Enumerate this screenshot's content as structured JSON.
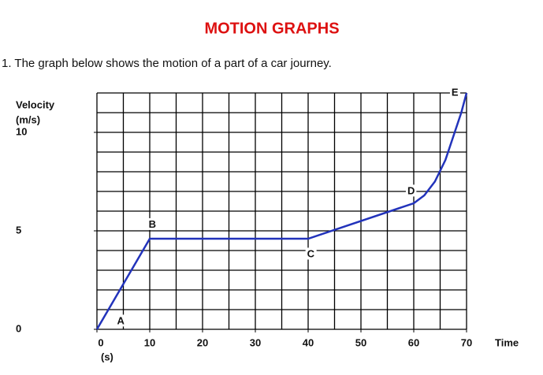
{
  "header": {
    "title": "MOTION GRAPHS",
    "question": "1. The graph below shows the motion of a part of a car journey."
  },
  "chart_data": {
    "type": "line",
    "ylabel": [
      "Velocity",
      "(m/s)"
    ],
    "xlabel": "Time",
    "xunit": "(s)",
    "x": [
      0,
      10,
      40,
      60,
      62,
      64,
      66,
      68,
      69,
      70
    ],
    "series": [
      {
        "name": "velocity",
        "color": "#2233bb",
        "values": [
          0,
          4.6,
          4.6,
          6.4,
          6.8,
          7.5,
          8.6,
          10.2,
          11,
          12
        ]
      }
    ],
    "xlim": [
      0,
      70
    ],
    "ylim": [
      0,
      12
    ],
    "xticks": [
      0,
      10,
      20,
      30,
      40,
      50,
      60,
      70
    ],
    "yticks": [
      0,
      5,
      10
    ],
    "grid": true,
    "grid_step": {
      "x": 5,
      "y": 1
    },
    "annotations": [
      {
        "text": "A",
        "x": 4.5,
        "y": 0.4
      },
      {
        "text": "B",
        "x": 10.5,
        "y": 5.3
      },
      {
        "text": "C",
        "x": 40.5,
        "y": 3.8
      },
      {
        "text": "D",
        "x": 59.5,
        "y": 7
      },
      {
        "text": "E",
        "x": 67.8,
        "y": 12
      }
    ]
  }
}
